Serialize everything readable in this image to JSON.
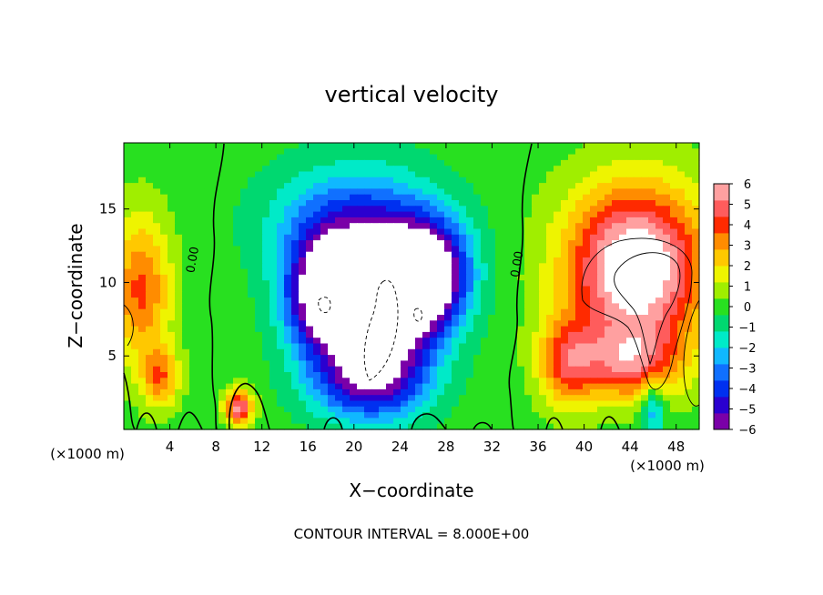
{
  "chart_data": {
    "type": "heatmap",
    "title": "vertical velocity",
    "xlabel": "X−coordinate",
    "ylabel": "Z−coordinate",
    "x_unit_left": "(×1000 m)",
    "x_unit_right": "(×1000 m)",
    "note": "CONTOUR INTERVAL = 8.000E+00",
    "xlim": [
      0,
      50
    ],
    "ylim": [
      0,
      19.5
    ],
    "x_ticks": [
      4,
      8,
      12,
      16,
      20,
      24,
      28,
      32,
      36,
      40,
      44,
      48
    ],
    "x_tick_labels": [
      "4",
      "8",
      "12",
      "16",
      "20",
      "24",
      "28",
      "32",
      "36",
      "40",
      "44",
      "48"
    ],
    "y_ticks": [
      5,
      10,
      15
    ],
    "y_tick_labels": [
      "5",
      "10",
      "15"
    ],
    "colorbar": {
      "min": -6,
      "max": 6,
      "ticks": [
        6,
        5,
        4,
        3,
        2,
        1,
        0,
        -1,
        -2,
        -3,
        -4,
        -5,
        -6
      ],
      "tick_labels": [
        "6",
        "5",
        "4",
        "3",
        "2",
        "1",
        "0",
        "−1",
        "−2",
        "−3",
        "−4",
        "−5",
        "−6"
      ],
      "colors": [
        "#7a00a8",
        "#2a00d0",
        "#0030f0",
        "#1070ff",
        "#10b8ff",
        "#00eac8",
        "#00d870",
        "#28e020",
        "#a0ee00",
        "#eef400",
        "#ffc800",
        "#ff8c00",
        "#ff2a00",
        "#ff5c5c",
        "#ffa0a0"
      ]
    },
    "contour_labels": [
      {
        "x": 6.3,
        "z": 11.5,
        "text": "0.00"
      },
      {
        "x": 34.5,
        "z": 11.2,
        "text": "0.00"
      }
    ],
    "features": [
      {
        "type": "updraft",
        "x": 1.5,
        "z": 9.5,
        "sx": 2.6,
        "sz": 5,
        "w": 3.8
      },
      {
        "type": "updraft",
        "x": 3.2,
        "z": 3.5,
        "sx": 1.6,
        "sz": 2,
        "w": 3.2
      },
      {
        "type": "updraft",
        "x": 10,
        "z": 1.5,
        "sx": 1.2,
        "sz": 1.2,
        "w": 5.5
      },
      {
        "type": "downdraft",
        "x": 17.5,
        "z": 9,
        "sx": 3.5,
        "sz": 4,
        "w": -7
      },
      {
        "type": "downdraft",
        "x": 22.5,
        "z": 8,
        "sx": 4.5,
        "sz": 5,
        "w": -8
      },
      {
        "type": "downdraft",
        "x": 26.5,
        "z": 10.5,
        "sx": 3.5,
        "sz": 3.5,
        "w": -7
      },
      {
        "type": "downdraft",
        "x": 21,
        "z": 3,
        "sx": 5,
        "sz": 2.5,
        "w": -3.5
      },
      {
        "type": "downdraft",
        "x": 20,
        "z": 14,
        "sx": 7,
        "sz": 4,
        "w": -3.5
      },
      {
        "type": "updraft",
        "x": 44.5,
        "z": 11,
        "sx": 6,
        "sz": 5.5,
        "w": 7.5
      },
      {
        "type": "updraft",
        "x": 44,
        "z": 4.5,
        "sx": 4.5,
        "sz": 2.5,
        "w": 4
      },
      {
        "type": "updraft",
        "x": 38.5,
        "z": 4.5,
        "sx": 2.5,
        "sz": 3,
        "w": 3.5
      },
      {
        "type": "downdraft",
        "x": 46,
        "z": 1.5,
        "sx": 1,
        "sz": 2,
        "w": -3
      }
    ]
  }
}
